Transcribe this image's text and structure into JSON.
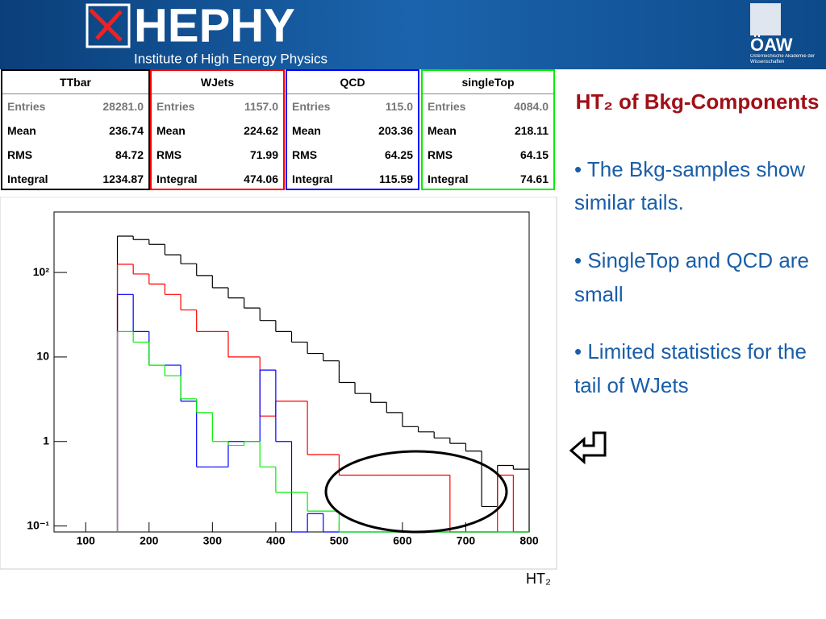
{
  "header": {
    "title": "HEPHY",
    "subtitle": "Institute of High Energy Physics",
    "logo": "ÖAW",
    "logo_caption": "Österreichische Akademie der Wissenschaften"
  },
  "stats": [
    {
      "rows": [
        [
          "Entries",
          "28281.0"
        ],
        [
          "Mean",
          "236.74"
        ],
        [
          "RMS",
          "84.72"
        ],
        [
          "Integral",
          "1234.87"
        ]
      ]
    },
    {
      "rows": [
        [
          "Entries",
          "1157.0"
        ],
        [
          "Mean",
          "224.62"
        ],
        [
          "RMS",
          "71.99"
        ],
        [
          "Integral",
          "474.06"
        ]
      ]
    },
    {
      "rows": [
        [
          "Entries",
          "115.0"
        ],
        [
          "Mean",
          "203.36"
        ],
        [
          "RMS",
          "64.25"
        ],
        [
          "Integral",
          "115.59"
        ]
      ]
    },
    {
      "rows": [
        [
          "Entries",
          "4084.0"
        ],
        [
          "Mean",
          "218.11"
        ],
        [
          "RMS",
          "64.15"
        ],
        [
          "Integral",
          "74.61"
        ]
      ]
    }
  ],
  "slide_title": "HT₂ of Bkg-Components",
  "bullets": [
    "• The Bkg-samples show similar tails.",
    "• SingleTop and QCD are small",
    "• Limited statistics for the tail of WJets"
  ],
  "chart_data": {
    "type": "histogram",
    "x_label": "HT₂",
    "log_y": true,
    "bins": [
      150,
      175,
      200,
      225,
      250,
      275,
      300,
      325,
      350,
      375,
      400,
      425,
      450,
      475,
      500,
      525,
      550,
      575,
      600,
      625,
      650,
      675,
      700,
      725,
      750,
      775,
      800
    ],
    "series": [
      {
        "name": "TTbar",
        "color": "#000000",
        "values": [
          269,
          245,
          215,
          162,
          127,
          92,
          66,
          50,
          38,
          27,
          20,
          15,
          11,
          9,
          5,
          3.7,
          2.9,
          2.2,
          1.5,
          1.3,
          1.1,
          0.95,
          0.77,
          0.17,
          0.52,
          0.47
        ]
      },
      {
        "name": "WJets",
        "color": "#ff0000",
        "values": [
          125,
          96,
          73,
          55,
          36,
          20,
          20,
          10,
          10,
          2,
          3,
          3,
          0.7,
          0.7,
          0.4,
          0.4,
          0.4,
          0.4,
          0.4,
          0.4,
          0.4,
          0,
          0,
          0,
          0.4,
          0
        ]
      },
      {
        "name": "QCD",
        "color": "#0000ff",
        "values": [
          55,
          20,
          8,
          8,
          3,
          0.5,
          0.5,
          1,
          1,
          7,
          1,
          0,
          0.14,
          0,
          0,
          0,
          0,
          0,
          0,
          0,
          0,
          0,
          0,
          0,
          0,
          0
        ]
      },
      {
        "name": "singleTop",
        "color": "#00ee00",
        "values": [
          20,
          15,
          8,
          6,
          3.2,
          2.2,
          1,
          0.9,
          1,
          0.5,
          0.25,
          0.25,
          0.15,
          0.15,
          0,
          0,
          0,
          0,
          0,
          0,
          0,
          0,
          0,
          0,
          0,
          0
        ]
      }
    ],
    "xlim": [
      50,
      800
    ],
    "xticks": [
      100,
      200,
      300,
      400,
      500,
      600,
      700,
      800
    ],
    "ylim": [
      0.085,
      520
    ],
    "yticks": [
      {
        "value": 0.1,
        "label": "10⁻¹"
      },
      1,
      10,
      {
        "value": 100,
        "label": "10²"
      }
    ]
  }
}
